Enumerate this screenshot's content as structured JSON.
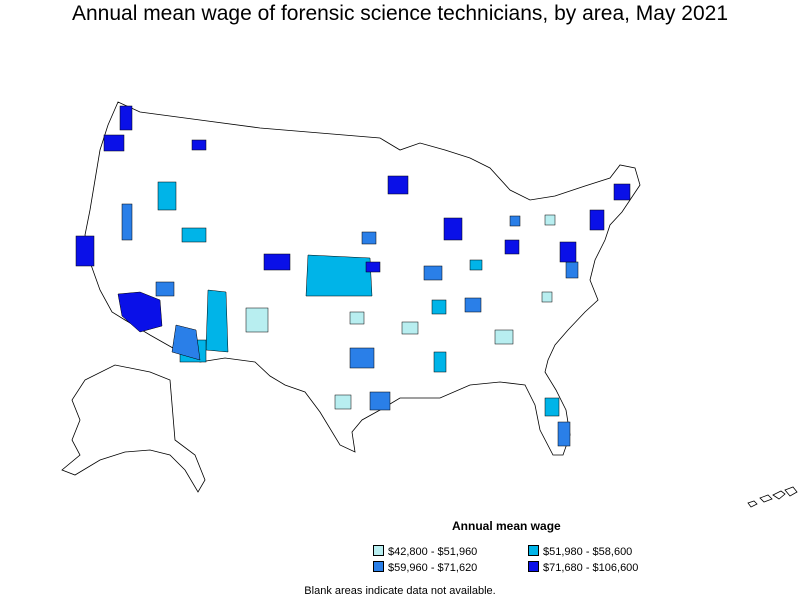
{
  "title": "Annual mean wage of forensic science technicians, by area, May 2021",
  "legend": {
    "title": "Annual mean wage",
    "items": [
      {
        "label": "$42,800 - $51,960",
        "color": "#b8eef0"
      },
      {
        "label": "$51,980 - $58,600",
        "color": "#00b4e8"
      },
      {
        "label": "$59,960 - $71,620",
        "color": "#2a7fe8"
      },
      {
        "label": "$71,680 - $106,600",
        "color": "#0a10e8"
      }
    ]
  },
  "footnote": "Blank areas indicate data not available.",
  "colors": {
    "outline": "#000000",
    "no_data": "#ffffff"
  }
}
